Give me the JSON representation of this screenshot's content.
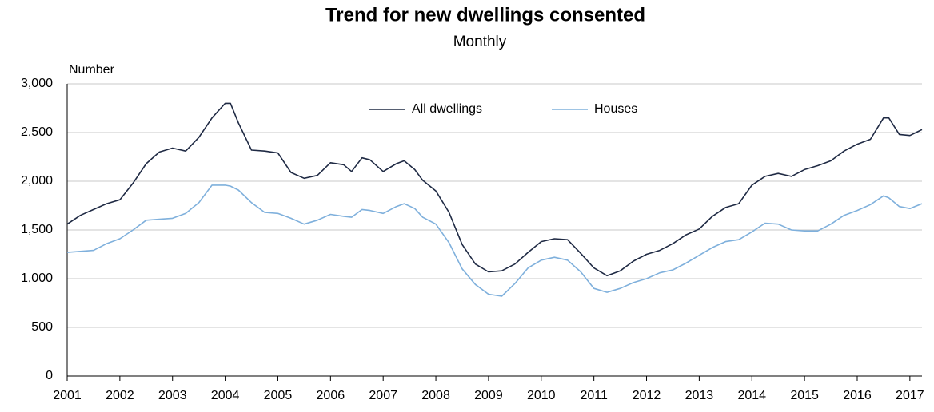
{
  "chart_data": {
    "type": "line",
    "title": "Trend for new dwellings consented",
    "subtitle": "Monthly",
    "y_label": "Number",
    "x": [
      2001,
      2001.25,
      2001.5,
      2001.75,
      2002,
      2002.25,
      2002.5,
      2002.75,
      2003,
      2003.25,
      2003.5,
      2003.75,
      2004,
      2004.1,
      2004.25,
      2004.5,
      2004.75,
      2005,
      2005.25,
      2005.5,
      2005.75,
      2006,
      2006.25,
      2006.4,
      2006.6,
      2006.75,
      2007,
      2007.25,
      2007.4,
      2007.6,
      2007.75,
      2008,
      2008.25,
      2008.5,
      2008.75,
      2009,
      2009.25,
      2009.5,
      2009.75,
      2010,
      2010.25,
      2010.5,
      2010.75,
      2011,
      2011.25,
      2011.5,
      2011.75,
      2012,
      2012.25,
      2012.5,
      2012.75,
      2013,
      2013.25,
      2013.5,
      2013.75,
      2014,
      2014.25,
      2014.5,
      2014.75,
      2015,
      2015.25,
      2015.5,
      2015.75,
      2016,
      2016.25,
      2016.5,
      2016.6,
      2016.8,
      2017,
      2017.23
    ],
    "series": [
      {
        "name": "All dwellings",
        "color": "#1f2a44",
        "values": [
          1560,
          1650,
          1710,
          1770,
          1810,
          1980,
          2180,
          2300,
          2340,
          2310,
          2450,
          2650,
          2800,
          2800,
          2600,
          2320,
          2310,
          2290,
          2090,
          2030,
          2060,
          2190,
          2170,
          2100,
          2240,
          2220,
          2100,
          2180,
          2210,
          2120,
          2010,
          1900,
          1680,
          1350,
          1150,
          1070,
          1080,
          1150,
          1270,
          1380,
          1410,
          1400,
          1260,
          1110,
          1030,
          1080,
          1180,
          1250,
          1290,
          1360,
          1450,
          1510,
          1640,
          1730,
          1770,
          1960,
          2050,
          2080,
          2050,
          2120,
          2160,
          2210,
          2310,
          2380,
          2430,
          2650,
          2650,
          2480,
          2470,
          2530
        ]
      },
      {
        "name": "Houses",
        "color": "#7fb0dc",
        "values": [
          1270,
          1280,
          1290,
          1360,
          1410,
          1500,
          1600,
          1610,
          1620,
          1670,
          1780,
          1960,
          1960,
          1950,
          1910,
          1780,
          1680,
          1670,
          1620,
          1560,
          1600,
          1660,
          1640,
          1630,
          1710,
          1700,
          1670,
          1740,
          1770,
          1720,
          1630,
          1560,
          1370,
          1100,
          940,
          840,
          820,
          950,
          1110,
          1190,
          1220,
          1190,
          1070,
          900,
          860,
          900,
          960,
          1000,
          1060,
          1090,
          1160,
          1240,
          1320,
          1380,
          1400,
          1480,
          1570,
          1560,
          1500,
          1490,
          1490,
          1560,
          1650,
          1700,
          1760,
          1850,
          1830,
          1740,
          1720,
          1770
        ]
      }
    ],
    "xlim": [
      2001,
      2017.23
    ],
    "xticks": [
      2001,
      2002,
      2003,
      2004,
      2005,
      2006,
      2007,
      2008,
      2009,
      2010,
      2011,
      2012,
      2013,
      2014,
      2015,
      2016,
      2017
    ],
    "ylim": [
      0,
      3000
    ],
    "yticks": [
      0,
      500,
      {
        "value": 1000,
        "label": "1,000"
      },
      {
        "value": 1500,
        "label": "1,500"
      },
      {
        "value": 2000,
        "label": "2,000"
      },
      {
        "value": 2500,
        "label": "2,500"
      },
      {
        "value": 3000,
        "label": "3,000"
      }
    ],
    "grid": true,
    "legend": "top"
  }
}
